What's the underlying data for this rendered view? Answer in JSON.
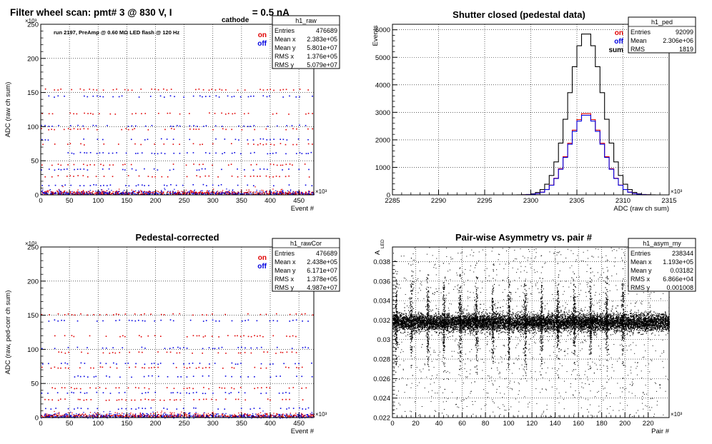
{
  "page_title": {
    "main": "Filter wheel scan: pmt#   3 @   830 V, I",
    "subscript": "cathode",
    "tail": " = 0.5 nA"
  },
  "chart_data": [
    {
      "id": "raw",
      "type": "scatter",
      "title": "",
      "run_note": "run 2197, PreAmp @ 0.60 MΩ  LED flash @  120 Hz",
      "xlabel": "Event #",
      "ylabel": "ADC (raw ch sum)",
      "x_exponent": "×10³",
      "y_exponent": "×10³",
      "xlim": [
        0,
        476
      ],
      "ylim": [
        0,
        250
      ],
      "xticks": [
        0,
        50,
        100,
        150,
        200,
        250,
        300,
        350,
        400,
        450
      ],
      "yticks": [
        0,
        50,
        100,
        150,
        200,
        250
      ],
      "legend": [
        {
          "label": "on",
          "color": "#e00000"
        },
        {
          "label": "off",
          "color": "#0000e0"
        }
      ],
      "levels": [
        155,
        145,
        120,
        102,
        97,
        82,
        75,
        62,
        45,
        38,
        28,
        15,
        5,
        2
      ],
      "stats": {
        "name": "h1_raw",
        "rows": [
          [
            "Entries",
            "476689"
          ],
          [
            "Mean x",
            "2.383e+05"
          ],
          [
            "Mean y",
            "5.801e+07"
          ],
          [
            "RMS x",
            "1.376e+05"
          ],
          [
            "RMS y",
            "5.079e+07"
          ]
        ]
      }
    },
    {
      "id": "ped",
      "type": "histogram",
      "title": "Shutter closed (pedestal data)",
      "xlabel": "ADC (raw ch sum)",
      "ylabel": "Events",
      "x_exponent": "×10³",
      "xlim": [
        2285,
        2315
      ],
      "ylim": [
        0,
        6200
      ],
      "xticks": [
        2285,
        2290,
        2295,
        2300,
        2305,
        2310,
        2315
      ],
      "yticks": [
        0,
        1000,
        2000,
        3000,
        4000,
        5000,
        6000
      ],
      "legend": [
        {
          "label": "on",
          "color": "#e00000"
        },
        {
          "label": "off",
          "color": "#0000e0"
        },
        {
          "label": "sum",
          "color": "#000000"
        }
      ],
      "gauss": {
        "mean": 2306.0,
        "sigma": 1.82,
        "bin_width": 0.5
      },
      "series": [
        {
          "name": "sum",
          "peak": 5900,
          "color": "#000000"
        },
        {
          "name": "on",
          "peak": 2950,
          "color": "#e00000"
        },
        {
          "name": "off",
          "peak": 2950,
          "color": "#0000e0"
        }
      ],
      "stats": {
        "name": "h1_ped",
        "rows": [
          [
            "Entries",
            "92099"
          ],
          [
            "Mean",
            "2.306e+06"
          ],
          [
            "RMS",
            "1819"
          ]
        ]
      }
    },
    {
      "id": "rawCor",
      "type": "scatter",
      "title": "Pedestal-corrected",
      "xlabel": "Event #",
      "ylabel": "ADC (raw, ped-corr ch sum)",
      "x_exponent": "×10³",
      "y_exponent": "×10³",
      "xlim": [
        0,
        476
      ],
      "ylim": [
        0,
        250
      ],
      "xticks": [
        0,
        50,
        100,
        150,
        200,
        250,
        300,
        350,
        400,
        450
      ],
      "yticks": [
        0,
        50,
        100,
        150,
        200,
        250
      ],
      "legend": [
        {
          "label": "on",
          "color": "#e00000"
        },
        {
          "label": "off",
          "color": "#0000e0"
        }
      ],
      "levels": [
        152,
        143,
        120,
        103,
        96,
        80,
        74,
        61,
        44,
        37,
        27,
        14,
        4,
        1
      ],
      "stats": {
        "name": "h1_rawCor",
        "rows": [
          [
            "Entries",
            "476689"
          ],
          [
            "Mean x",
            "2.438e+05"
          ],
          [
            "Mean y",
            "6.171e+07"
          ],
          [
            "RMS x",
            "1.378e+05"
          ],
          [
            "RMS y",
            "4.987e+07"
          ]
        ]
      }
    },
    {
      "id": "asym",
      "type": "scatter",
      "title": "Pair-wise Asymmetry vs. pair #",
      "xlabel": "Pair #",
      "ylabel": "A",
      "ylabel_sub": "LED",
      "x_exponent": "×10³",
      "xlim": [
        0,
        238
      ],
      "ylim": [
        0.022,
        0.0395
      ],
      "xticks": [
        0,
        20,
        40,
        60,
        80,
        100,
        120,
        140,
        160,
        180,
        200,
        220
      ],
      "yticks": [
        0.022,
        0.024,
        0.026,
        0.028,
        0.03,
        0.032,
        0.034,
        0.036,
        0.038
      ],
      "band_center": 0.0318,
      "spike_pairs": [
        3,
        16,
        30,
        44,
        58,
        72,
        86,
        100,
        114,
        128,
        142,
        156,
        170,
        184,
        198
      ],
      "stats": {
        "name": "h1_asym_my",
        "rows": [
          [
            "Entries",
            "238344"
          ],
          [
            "Mean x",
            "1.193e+05"
          ],
          [
            "Mean y",
            "0.03182"
          ],
          [
            "RMS x",
            "6.866e+04"
          ],
          [
            "RMS y",
            "0.001008"
          ]
        ]
      }
    }
  ]
}
